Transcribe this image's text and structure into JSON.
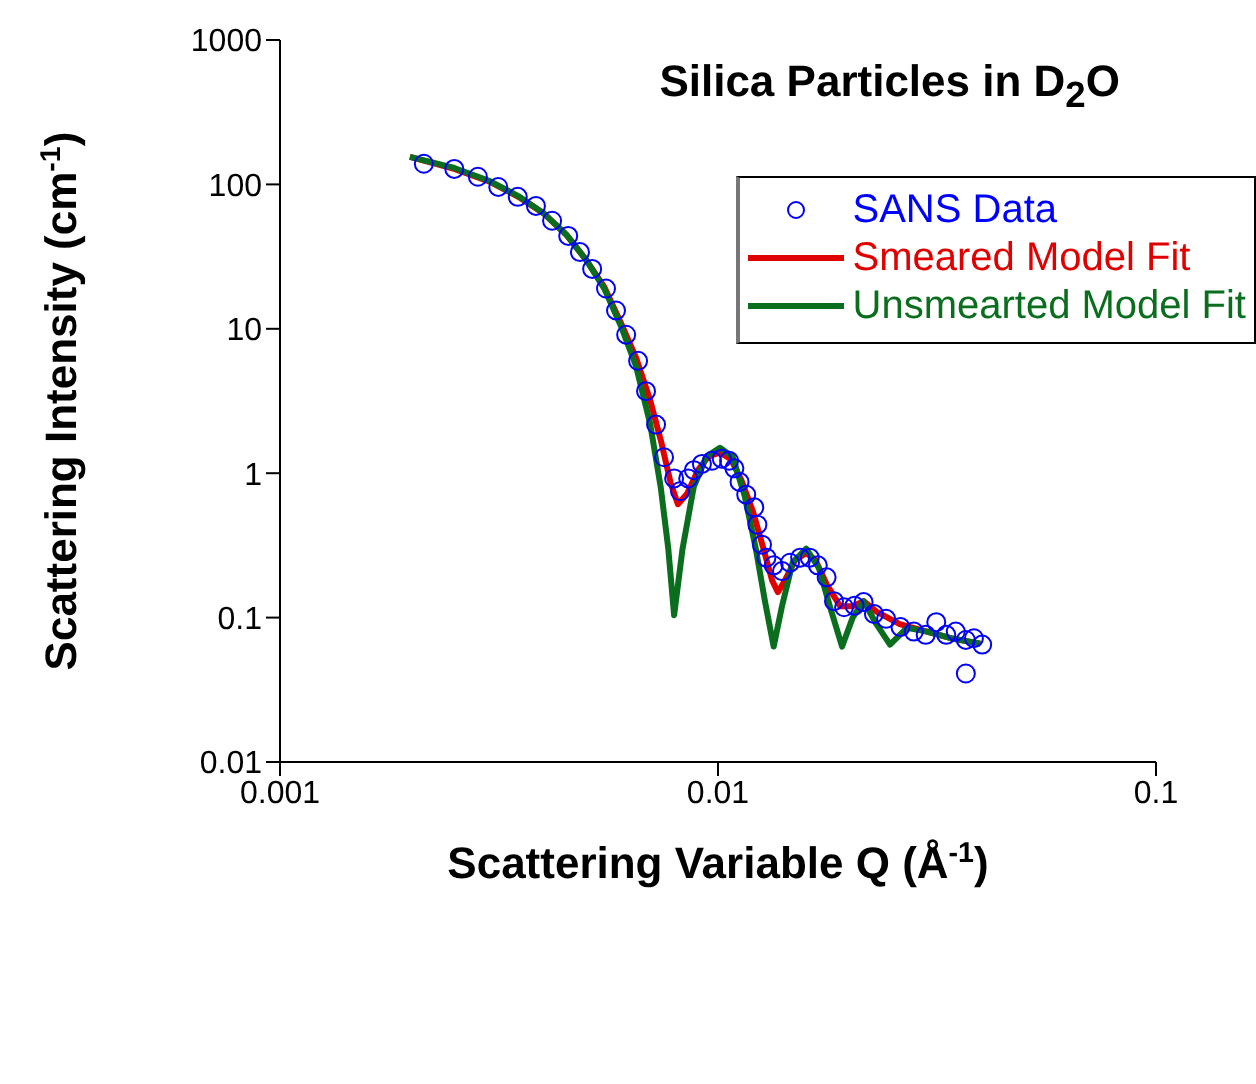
{
  "chart_data": {
    "type": "scatter",
    "title": "Silica Particles in D$_{2}$O",
    "xlabel": "Scattering Variable Q (Å$^{-1}$)",
    "ylabel": "Scattering Intensity (cm$^{-1}$)",
    "log": "xy",
    "xlim": [
      0.001,
      0.1
    ],
    "xticks": [
      0.001,
      0.01,
      0.1
    ],
    "ylim": [
      0.01,
      1000
    ],
    "yticks": [
      0.01,
      0.1,
      1,
      10,
      100,
      1000
    ],
    "legend": "top right",
    "grid": false,
    "series": [
      {
        "name": "SANS Data",
        "color": "#0000ff",
        "marker": "circle",
        "x": [
          0.00213,
          0.0025,
          0.00283,
          0.00315,
          0.00349,
          0.00384,
          0.00418,
          0.00455,
          0.00484,
          0.00516,
          0.00555,
          0.00585,
          0.00617,
          0.00657,
          0.00685,
          0.00722,
          0.00753,
          0.00794,
          0.00819,
          0.00855,
          0.00881,
          0.00919,
          0.00969,
          0.0102,
          0.0106,
          0.0109,
          0.0112,
          0.0116,
          0.0121,
          0.0123,
          0.0126,
          0.0129,
          0.0134,
          0.014,
          0.0146,
          0.0154,
          0.0162,
          0.0169,
          0.0177,
          0.0184,
          0.0194,
          0.0205,
          0.0215,
          0.0227,
          0.0242,
          0.0261,
          0.028,
          0.0298,
          0.0315,
          0.0332,
          0.0349,
          0.0368,
          0.0384,
          0.0401,
          0.0368
        ],
        "values": [
          139,
          128,
          113,
          96,
          82,
          71,
          56,
          44,
          34,
          26,
          19,
          13.4,
          9.1,
          6.0,
          3.7,
          2.17,
          1.29,
          0.92,
          0.75,
          0.92,
          1.05,
          1.16,
          1.22,
          1.26,
          1.22,
          1.08,
          0.87,
          0.71,
          0.58,
          0.44,
          0.32,
          0.26,
          0.23,
          0.21,
          0.24,
          0.26,
          0.26,
          0.23,
          0.19,
          0.13,
          0.118,
          0.121,
          0.128,
          0.106,
          0.098,
          0.086,
          0.08,
          0.076,
          0.093,
          0.076,
          0.08,
          0.07,
          0.072,
          0.065,
          0.041
        ]
      },
      {
        "name": "Smeared Model Fit",
        "type": "line",
        "color": "#e00000",
        "marker": "none",
        "line_style": "solid",
        "x": [
          0.00198,
          0.0025,
          0.003,
          0.0035,
          0.004,
          0.0045,
          0.005,
          0.0055,
          0.006,
          0.0065,
          0.007,
          0.0074,
          0.0078,
          0.0081,
          0.0085,
          0.009,
          0.0095,
          0.0101,
          0.0107,
          0.0113,
          0.012,
          0.0127,
          0.0133,
          0.0137,
          0.0142,
          0.015,
          0.0159,
          0.0167,
          0.0177,
          0.019,
          0.0203,
          0.0215,
          0.023,
          0.026,
          0.03,
          0.034,
          0.0397
        ],
        "values": [
          155,
          128,
          105,
          82,
          63,
          45,
          30,
          19.5,
          11,
          6.3,
          3.2,
          1.7,
          0.85,
          0.61,
          0.72,
          1.05,
          1.3,
          1.39,
          1.25,
          0.9,
          0.55,
          0.3,
          0.18,
          0.15,
          0.18,
          0.25,
          0.28,
          0.25,
          0.17,
          0.12,
          0.12,
          0.13,
          0.11,
          0.09,
          0.08,
          0.072,
          0.066
        ]
      },
      {
        "name": "Unsmearted Model Fit",
        "type": "line",
        "color": "#0a6e1e",
        "marker": "none",
        "line_style": "solid",
        "x": [
          0.00198,
          0.0025,
          0.003,
          0.0035,
          0.004,
          0.0045,
          0.005,
          0.0055,
          0.006,
          0.0065,
          0.007,
          0.0074,
          0.0077,
          0.00794,
          0.0083,
          0.0088,
          0.0094,
          0.0101,
          0.0108,
          0.0115,
          0.0122,
          0.0128,
          0.0134,
          0.014,
          0.0148,
          0.0159,
          0.017,
          0.018,
          0.0192,
          0.0203,
          0.0215,
          0.023,
          0.0247,
          0.027,
          0.03,
          0.034,
          0.0397
        ],
        "values": [
          155,
          130,
          106,
          83,
          63,
          45,
          30,
          19,
          10.5,
          5.5,
          2.2,
          0.8,
          0.3,
          0.104,
          0.3,
          0.8,
          1.3,
          1.5,
          1.3,
          0.7,
          0.3,
          0.13,
          0.063,
          0.12,
          0.24,
          0.3,
          0.22,
          0.12,
          0.063,
          0.1,
          0.13,
          0.09,
          0.065,
          0.085,
          0.08,
          0.072,
          0.066
        ]
      }
    ]
  }
}
